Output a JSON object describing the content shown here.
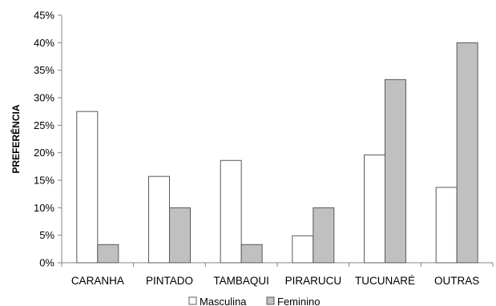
{
  "chart_data": {
    "type": "bar",
    "title": "",
    "xlabel": "",
    "ylabel": "PREFERÊNCIA",
    "ylim": [
      0,
      45
    ],
    "yticks": [
      "0%",
      "5%",
      "10%",
      "15%",
      "20%",
      "25%",
      "30%",
      "35%",
      "40%",
      "45%"
    ],
    "ytick_values": [
      0,
      5,
      10,
      15,
      20,
      25,
      30,
      35,
      40,
      45
    ],
    "categories": [
      "CARANHA",
      "PINTADO",
      "TAMBAQUI",
      "PIRARUCU",
      "TUCUNARÉ",
      "OUTRAS"
    ],
    "series": [
      {
        "name": "Masculina",
        "color": "#ffffff",
        "values": [
          27.5,
          15.7,
          18.6,
          4.9,
          19.6,
          13.7
        ]
      },
      {
        "name": "Feminino",
        "color": "#c0c0c0",
        "values": [
          3.3,
          10.0,
          3.3,
          10.0,
          33.3,
          40.0
        ]
      }
    ],
    "grid": false,
    "legend_position": "bottom"
  }
}
